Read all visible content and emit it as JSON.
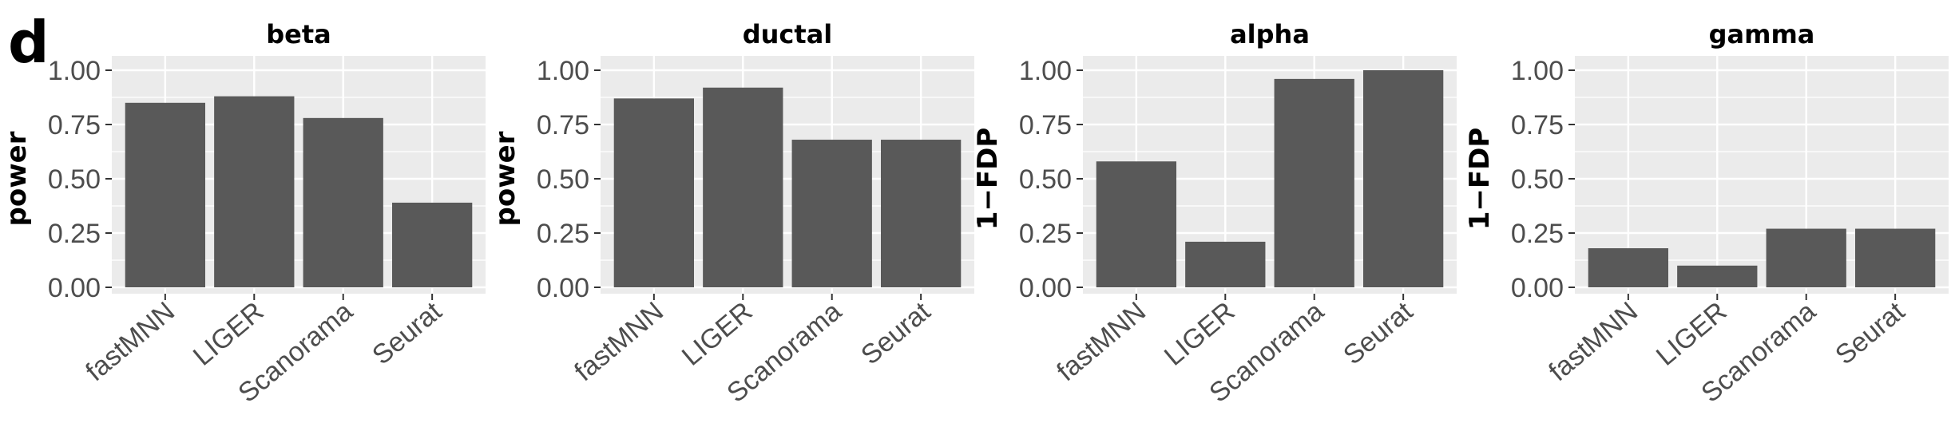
{
  "panel_letter": "d",
  "chart_data": [
    {
      "type": "bar",
      "title": "beta",
      "ylabel": "power",
      "categories": [
        "fastMNN",
        "LIGER",
        "Scanorama",
        "Seurat"
      ],
      "values": [
        0.85,
        0.88,
        0.78,
        0.39
      ],
      "ylim": [
        0,
        1
      ],
      "yticks": [
        "0.00",
        "0.25",
        "0.50",
        "0.75",
        "1.00"
      ],
      "grid": true
    },
    {
      "type": "bar",
      "title": "ductal",
      "ylabel": "power",
      "categories": [
        "fastMNN",
        "LIGER",
        "Scanorama",
        "Seurat"
      ],
      "values": [
        0.87,
        0.92,
        0.68,
        0.68
      ],
      "ylim": [
        0,
        1
      ],
      "yticks": [
        "0.00",
        "0.25",
        "0.50",
        "0.75",
        "1.00"
      ],
      "grid": true
    },
    {
      "type": "bar",
      "title": "alpha",
      "ylabel": "1−FDP",
      "categories": [
        "fastMNN",
        "LIGER",
        "Scanorama",
        "Seurat"
      ],
      "values": [
        0.58,
        0.21,
        0.96,
        1.0
      ],
      "ylim": [
        0,
        1
      ],
      "yticks": [
        "0.00",
        "0.25",
        "0.50",
        "0.75",
        "1.00"
      ],
      "grid": true
    },
    {
      "type": "bar",
      "title": "gamma",
      "ylabel": "1−FDP",
      "categories": [
        "fastMNN",
        "LIGER",
        "Scanorama",
        "Seurat"
      ],
      "values": [
        0.18,
        0.1,
        0.27,
        0.27
      ],
      "ylim": [
        0,
        1
      ],
      "yticks": [
        "0.00",
        "0.25",
        "0.50",
        "0.75",
        "1.00"
      ],
      "grid": true
    }
  ],
  "colors": {
    "panel_background": "#ebebeb",
    "grid": "#ffffff",
    "bar": "#595959",
    "tick_text": "#4d4d4d"
  }
}
